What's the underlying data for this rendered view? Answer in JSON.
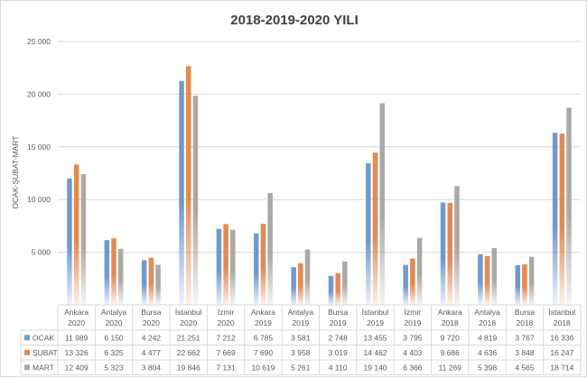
{
  "chart_data": {
    "type": "bar",
    "title": "2018-2019-2020 YILI",
    "ylabel": "OCAK-ŞUBAT-MART",
    "ylim": [
      0,
      25000
    ],
    "yticks": [
      0,
      5000,
      10000,
      15000,
      20000,
      25000
    ],
    "ytick_labels": [
      "",
      "5 000",
      "10 000",
      "15 000",
      "20 000",
      "25 000"
    ],
    "grid": true,
    "legend": "data-table-left",
    "categories": [
      {
        "city": "Ankara",
        "year": "2020"
      },
      {
        "city": "Antalya",
        "year": "2020"
      },
      {
        "city": "Bursa",
        "year": "2020"
      },
      {
        "city": "İstanbul",
        "year": "2020"
      },
      {
        "city": "İzmir",
        "year": "2020"
      },
      {
        "city": "Ankara",
        "year": "2019"
      },
      {
        "city": "Antalya",
        "year": "2019"
      },
      {
        "city": "Bursa",
        "year": "2019"
      },
      {
        "city": "İstanbul",
        "year": "2019"
      },
      {
        "city": "İzmir",
        "year": "2019"
      },
      {
        "city": "Ankara",
        "year": "2018"
      },
      {
        "city": "Antalya",
        "year": "2018"
      },
      {
        "city": "Bursa",
        "year": "2018"
      },
      {
        "city": "İstanbul",
        "year": "2018"
      }
    ],
    "series": [
      {
        "name": "OCAK",
        "color": "#6d9bd0",
        "values": [
          11989,
          6150,
          4242,
          21251,
          7212,
          6785,
          3581,
          2748,
          13455,
          3795,
          9720,
          4819,
          3767,
          16336
        ],
        "labels": [
          "11 989",
          "6 150",
          "4 242",
          "21 251",
          "7 212",
          "6 785",
          "3 581",
          "2 748",
          "13 455",
          "3 795",
          "9 720",
          "4 819",
          "3 767",
          "16 336"
        ]
      },
      {
        "name": "ŞUBAT",
        "color": "#e8884a",
        "values": [
          13326,
          6325,
          4477,
          22662,
          7669,
          7690,
          3958,
          3019,
          14462,
          4403,
          9686,
          4636,
          3848,
          16247
        ],
        "labels": [
          "13 326",
          "6 325",
          "4 477",
          "22 662",
          "7 669",
          "7 690",
          "3 958",
          "3 019",
          "14 462",
          "4 403",
          "9 686",
          "4 636",
          "3 848",
          "16 247"
        ]
      },
      {
        "name": "MART",
        "color": "#a9a9a9",
        "values": [
          12409,
          5323,
          3804,
          19846,
          7131,
          10619,
          5261,
          4110,
          19140,
          6366,
          11269,
          5398,
          4565,
          18714
        ],
        "labels": [
          "12 409",
          "5 323",
          "3 804",
          "19 846",
          "7 131",
          "10 619",
          "5 261",
          "4 110",
          "19 140",
          "6 366",
          "11 269",
          "5 398",
          "4 565",
          "18 714"
        ]
      }
    ]
  }
}
